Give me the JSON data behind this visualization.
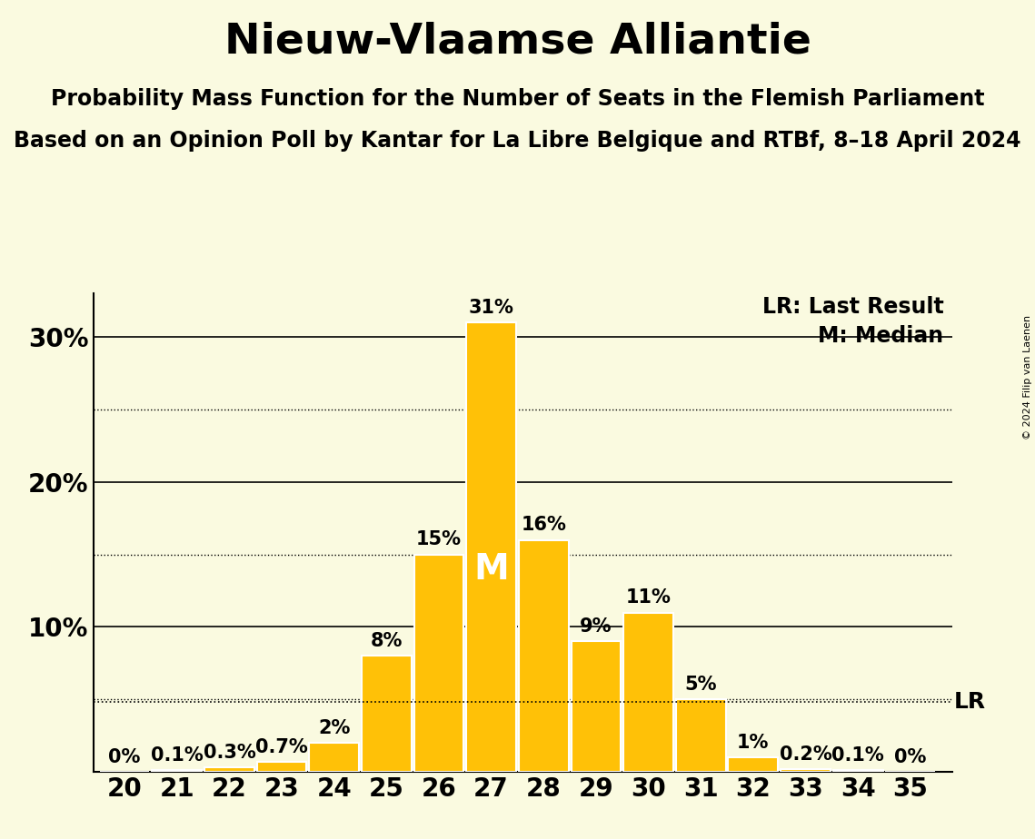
{
  "title": "Nieuw-Vlaamse Alliantie",
  "subtitle1": "Probability Mass Function for the Number of Seats in the Flemish Parliament",
  "subtitle2": "Based on an Opinion Poll by Kantar for La Libre Belgique and RTBf, 8–18 April 2024",
  "copyright": "© 2024 Filip van Laenen",
  "seats": [
    20,
    21,
    22,
    23,
    24,
    25,
    26,
    27,
    28,
    29,
    30,
    31,
    32,
    33,
    34,
    35
  ],
  "probabilities": [
    0.0,
    0.1,
    0.3,
    0.7,
    2.0,
    8.0,
    15.0,
    31.0,
    16.0,
    9.0,
    11.0,
    5.0,
    1.0,
    0.2,
    0.1,
    0.0
  ],
  "bar_color": "#FFC107",
  "bar_edgecolor": "#FFFFFF",
  "background_color": "#FAFAE0",
  "text_color": "#000000",
  "median_seat": 27,
  "lr_value": 4.8,
  "ylim": [
    0,
    33
  ],
  "solid_yticks": [
    10,
    20,
    30
  ],
  "dotted_yticks": [
    5,
    15,
    25
  ],
  "lr_label": "LR: Last Result",
  "median_label": "M: Median",
  "title_fontsize": 34,
  "subtitle_fontsize": 17,
  "tick_fontsize": 20,
  "bar_label_fontsize": 15,
  "legend_fontsize": 17,
  "lr_fontsize": 18,
  "m_fontsize": 28,
  "copyright_fontsize": 8
}
